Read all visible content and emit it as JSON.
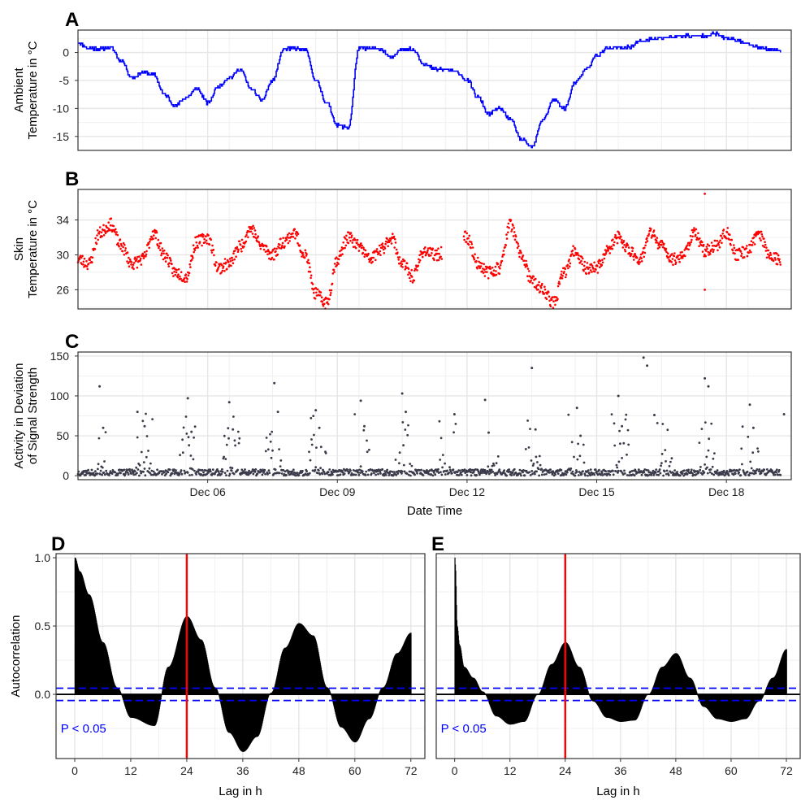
{
  "chart_data": [
    {
      "panel": "A",
      "type": "line",
      "ylabel": [
        "Ambient",
        "Temperature in °C"
      ],
      "xlim": [
        "2020-12-03T00:00",
        "2020-12-19T12:00"
      ],
      "ylim": [
        -17.5,
        4
      ],
      "yticks": [
        0,
        -5,
        -10,
        -15
      ],
      "grid": true,
      "color": "#0000ff",
      "series": [
        {
          "x": [
            "2020-12-03T00:00",
            "2020-12-03T06:00",
            "2020-12-03T12:00",
            "2020-12-03T18:00",
            "2020-12-04T00:00",
            "2020-12-04T06:00",
            "2020-12-04T12:00",
            "2020-12-04T18:00",
            "2020-12-05T00:00",
            "2020-12-05T06:00",
            "2020-12-05T12:00",
            "2020-12-05T18:00",
            "2020-12-06T00:00",
            "2020-12-06T06:00",
            "2020-12-06T12:00",
            "2020-12-06T18:00",
            "2020-12-07T00:00",
            "2020-12-07T06:00",
            "2020-12-07T12:00",
            "2020-12-07T18:00",
            "2020-12-08T00:00",
            "2020-12-08T06:00",
            "2020-12-08T12:00",
            "2020-12-08T18:00",
            "2020-12-09T00:00",
            "2020-12-09T06:00",
            "2020-12-09T12:00",
            "2020-12-09T18:00",
            "2020-12-10T00:00",
            "2020-12-10T06:00",
            "2020-12-10T12:00",
            "2020-12-10T18:00",
            "2020-12-11T00:00",
            "2020-12-11T06:00",
            "2020-12-11T12:00",
            "2020-12-11T18:00",
            "2020-12-12T00:00",
            "2020-12-12T06:00",
            "2020-12-12T12:00",
            "2020-12-12T18:00",
            "2020-12-13T00:00",
            "2020-12-13T06:00",
            "2020-12-13T12:00",
            "2020-12-13T18:00",
            "2020-12-14T00:00",
            "2020-12-14T06:00",
            "2020-12-14T12:00",
            "2020-12-14T18:00",
            "2020-12-15T00:00",
            "2020-12-15T06:00",
            "2020-12-15T12:00",
            "2020-12-15T18:00",
            "2020-12-16T00:00",
            "2020-12-16T06:00",
            "2020-12-16T12:00",
            "2020-12-16T18:00",
            "2020-12-17T00:00",
            "2020-12-17T06:00",
            "2020-12-17T12:00",
            "2020-12-17T18:00",
            "2020-12-18T00:00",
            "2020-12-18T06:00",
            "2020-12-18T12:00",
            "2020-12-18T18:00",
            "2020-12-19T00:00",
            "2020-12-19T06:00"
          ],
          "y": [
            1.8,
            0.8,
            0.6,
            0.9,
            -1.5,
            -4.5,
            -3.5,
            -4.0,
            -7.5,
            -9.5,
            -8.0,
            -6.5,
            -9.0,
            -6.0,
            -4.5,
            -3.0,
            -6.5,
            -8.5,
            -5.0,
            0.5,
            0.7,
            0.5,
            -5.0,
            -9.0,
            -13.0,
            -13.5,
            0.8,
            0.7,
            0.6,
            -1.0,
            0.7,
            0.5,
            -2.0,
            -3.0,
            -3.0,
            -3.5,
            -5.0,
            -8.0,
            -11.0,
            -10.0,
            -12.0,
            -15.5,
            -17.0,
            -12.0,
            -8.5,
            -10.0,
            -5.5,
            -3.0,
            -0.5,
            0.7,
            0.8,
            1.0,
            2.0,
            2.3,
            2.6,
            2.8,
            3.0,
            2.9,
            3.0,
            3.3,
            2.5,
            2.2,
            1.5,
            1.0,
            0.5,
            0.3
          ]
        }
      ]
    },
    {
      "panel": "B",
      "type": "scatter",
      "ylabel": [
        "Skin",
        "Temperature in °C"
      ],
      "xlim": [
        "2020-12-03T00:00",
        "2020-12-19T12:00"
      ],
      "ylim": [
        23.8,
        37.5
      ],
      "yticks": [
        26,
        30,
        34
      ],
      "grid": true,
      "color": "#ff0000",
      "series": [
        {
          "x": [
            "2020-12-03T00:00",
            "2020-12-03T06:00",
            "2020-12-03T12:00",
            "2020-12-03T18:00",
            "2020-12-04T00:00",
            "2020-12-04T06:00",
            "2020-12-04T12:00",
            "2020-12-04T18:00",
            "2020-12-05T00:00",
            "2020-12-05T06:00",
            "2020-12-05T12:00",
            "2020-12-05T18:00",
            "2020-12-06T00:00",
            "2020-12-06T06:00",
            "2020-12-06T12:00",
            "2020-12-06T18:00",
            "2020-12-07T00:00",
            "2020-12-07T06:00",
            "2020-12-07T12:00",
            "2020-12-07T18:00",
            "2020-12-08T00:00",
            "2020-12-08T06:00",
            "2020-12-08T12:00",
            "2020-12-08T18:00",
            "2020-12-09T00:00",
            "2020-12-09T06:00",
            "2020-12-09T12:00",
            "2020-12-09T18:00",
            "2020-12-10T00:00",
            "2020-12-10T06:00",
            "2020-12-10T12:00",
            "2020-12-10T18:00",
            "2020-12-11T00:00",
            "2020-12-11T06:00",
            "2020-12-12T00:00",
            "2020-12-12T06:00",
            "2020-12-12T12:00",
            "2020-12-12T18:00",
            "2020-12-13T00:00",
            "2020-12-13T06:00",
            "2020-12-13T12:00",
            "2020-12-13T18:00",
            "2020-12-14T00:00",
            "2020-12-14T06:00",
            "2020-12-14T12:00",
            "2020-12-14T18:00",
            "2020-12-15T00:00",
            "2020-12-15T06:00",
            "2020-12-15T12:00",
            "2020-12-15T18:00",
            "2020-12-16T00:00",
            "2020-12-16T06:00",
            "2020-12-16T12:00",
            "2020-12-16T18:00",
            "2020-12-17T00:00",
            "2020-12-17T06:00",
            "2020-12-17T12:00",
            "2020-12-17T18:00",
            "2020-12-18T00:00",
            "2020-12-18T06:00",
            "2020-12-18T12:00",
            "2020-12-18T18:00",
            "2020-12-19T00:00",
            "2020-12-19T06:00"
          ],
          "y": [
            29.5,
            29.0,
            32.5,
            33.5,
            31.0,
            29.0,
            29.5,
            32.5,
            30.0,
            28.0,
            27.5,
            31.5,
            32.0,
            28.5,
            29.0,
            31.0,
            33.0,
            31.0,
            30.0,
            31.5,
            32.5,
            30.0,
            25.5,
            24.5,
            29.5,
            32.0,
            31.0,
            29.5,
            30.5,
            32.0,
            29.0,
            27.5,
            30.5,
            30.0,
            32.0,
            29.0,
            28.0,
            28.5,
            33.5,
            30.0,
            27.0,
            26.0,
            24.5,
            28.0,
            30.5,
            28.5,
            28.5,
            30.5,
            32.0,
            30.5,
            29.5,
            32.5,
            31.0,
            29.5,
            30.0,
            32.5,
            30.5,
            31.0,
            32.5,
            30.0,
            30.5,
            32.5,
            30.0,
            29.5
          ]
        }
      ]
    },
    {
      "panel": "C",
      "type": "scatter",
      "ylabel": [
        "Activity in Deviation",
        "of Signal Strength"
      ],
      "xlabel": "Date Time",
      "xlim": [
        "2020-12-03T00:00",
        "2020-12-19T12:00"
      ],
      "ylim": [
        -5,
        155
      ],
      "yticks": [
        0,
        50,
        100,
        150
      ],
      "xticks": [
        "Dec 06",
        "Dec 09",
        "Dec 12",
        "Dec 15",
        "Dec 18"
      ],
      "xtick_dates": [
        "2020-12-06",
        "2020-12-09",
        "2020-12-12",
        "2020-12-15",
        "2020-12-18"
      ],
      "grid": true,
      "color": "#3a3a4a",
      "series": [
        {
          "x": [
            "2020-12-03T12:00",
            "2020-12-03T14:00",
            "2020-12-04T09:00",
            "2020-12-04T13:00",
            "2020-12-05T13:00",
            "2020-12-05T15:00",
            "2020-12-06T12:00",
            "2020-12-06T14:00",
            "2020-12-07T13:00",
            "2020-12-07T15:00",
            "2020-12-08T12:00",
            "2020-12-08T14:00",
            "2020-12-09T13:00",
            "2020-12-09T15:00",
            "2020-12-10T12:00",
            "2020-12-10T14:00",
            "2020-12-11T17:00",
            "2020-12-12T10:00",
            "2020-12-12T12:00",
            "2020-12-13T12:00",
            "2020-12-13T14:00",
            "2020-12-14T13:00",
            "2020-12-14T15:00",
            "2020-12-15T12:00",
            "2020-12-15T14:00",
            "2020-12-16T02:00",
            "2020-12-16T04:00",
            "2020-12-16T08:00",
            "2020-12-17T12:00",
            "2020-12-17T14:00",
            "2020-12-18T13:00",
            "2020-12-18T15:00",
            "2020-12-19T08:00"
          ],
          "y": [
            112,
            60,
            80,
            62,
            97,
            55,
            92,
            58,
            116,
            80,
            82,
            60,
            94,
            62,
            103,
            80,
            77,
            95,
            54,
            135,
            58,
            85,
            50,
            100,
            62,
            148,
            138,
            76,
            122,
            112,
            89,
            60,
            77
          ]
        }
      ]
    },
    {
      "panel": "D",
      "type": "bar",
      "ylabel": "Autocorrelation",
      "xlabel": "Lag in h",
      "xlim": [
        -4,
        75
      ],
      "ylim": [
        -0.47,
        1.03
      ],
      "xticks": [
        0,
        12,
        24,
        36,
        48,
        60,
        72
      ],
      "yticks": [
        0.0,
        0.5,
        1.0
      ],
      "ytick_labels": [
        "0.0",
        "0.5",
        "1.0"
      ],
      "grid": true,
      "significance_bounds": [
        0.045,
        -0.045
      ],
      "vline": 24,
      "annotation": "P < 0.05",
      "lag_step": 0.0833,
      "lag_max": 72,
      "acf_anchors": {
        "lag": [
          0,
          1,
          3,
          6,
          9,
          12,
          17,
          20,
          24,
          27,
          30,
          33,
          36,
          39,
          42,
          45,
          48,
          51,
          54,
          57,
          60,
          63,
          66,
          69,
          72
        ],
        "acf": [
          1.0,
          0.9,
          0.73,
          0.38,
          0.05,
          -0.17,
          -0.23,
          0.2,
          0.57,
          0.4,
          0.05,
          -0.28,
          -0.42,
          -0.31,
          0.01,
          0.34,
          0.52,
          0.43,
          0.05,
          -0.24,
          -0.35,
          -0.18,
          0.05,
          0.3,
          0.45
        ]
      }
    },
    {
      "panel": "E",
      "type": "bar",
      "xlabel": "Lag in h",
      "xlim": [
        -4,
        75
      ],
      "ylim": [
        -0.47,
        1.03
      ],
      "xticks": [
        0,
        12,
        24,
        36,
        48,
        60,
        72
      ],
      "grid": true,
      "significance_bounds": [
        0.045,
        -0.045
      ],
      "vline": 24,
      "annotation": "P < 0.05",
      "lag_step": 0.0833,
      "lag_max": 72,
      "acf_anchors": {
        "lag": [
          0,
          0.08,
          0.5,
          1,
          2,
          4,
          6,
          9,
          12,
          15,
          18,
          21,
          24,
          27,
          30,
          33,
          36,
          39,
          42,
          45,
          48,
          51,
          54,
          57,
          60,
          63,
          66,
          69,
          72
        ],
        "acf": [
          1.0,
          0.95,
          0.5,
          0.36,
          0.2,
          0.12,
          0.02,
          -0.16,
          -0.22,
          -0.2,
          0.0,
          0.22,
          0.38,
          0.2,
          -0.05,
          -0.17,
          -0.2,
          -0.19,
          0.0,
          0.2,
          0.3,
          0.12,
          -0.09,
          -0.18,
          -0.2,
          -0.18,
          -0.05,
          0.12,
          0.33
        ]
      }
    }
  ]
}
